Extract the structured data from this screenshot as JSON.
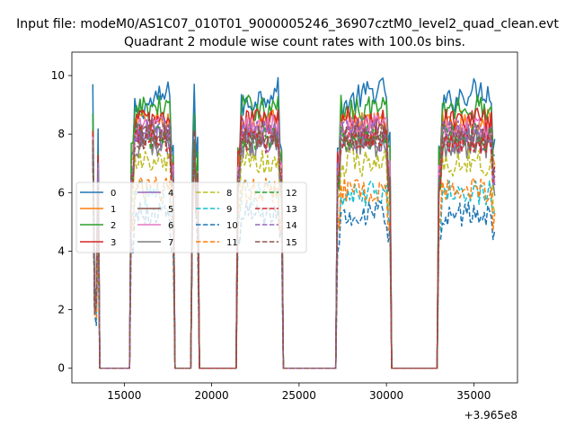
{
  "chart_data": {
    "type": "line",
    "suptitle": "Input file: modeM0/AS1C07_010T01_9000005246_36907cztM0_level2_quad_clean.evt",
    "title": "Quadrant 2 module wise count rates with 100.0s bins.",
    "xlabel": "",
    "ylabel": "",
    "x_offset_label": "+3.965e8",
    "xlim": [
      12000,
      37500
    ],
    "ylim": [
      -0.5,
      10.8
    ],
    "x_ticks": [
      15000,
      20000,
      25000,
      30000,
      35000
    ],
    "x_tick_labels": [
      "15000",
      "20000",
      "25000",
      "30000",
      "35000"
    ],
    "y_ticks": [
      0,
      2,
      4,
      6,
      8,
      10
    ],
    "y_tick_labels": [
      "0",
      "2",
      "4",
      "6",
      "8",
      "10"
    ],
    "bin_seconds": 100,
    "on_intervals": [
      [
        13200,
        13500
      ],
      [
        15400,
        17800
      ],
      [
        18900,
        19200
      ],
      [
        21500,
        24000
      ],
      [
        27200,
        30200
      ],
      [
        33000,
        36200
      ]
    ],
    "spike_x": [
      13200,
      19000
    ],
    "legend_position": "center-left",
    "legend_columns": 4,
    "series": [
      {
        "name": "0",
        "color": "#1f77b4",
        "dash": "solid",
        "level": 9.2,
        "spike": 9.7
      },
      {
        "name": "1",
        "color": "#ff7f0e",
        "dash": "solid",
        "level": 8.4,
        "spike": 8.2
      },
      {
        "name": "2",
        "color": "#2ca02c",
        "dash": "solid",
        "level": 8.9,
        "spike": 8.7
      },
      {
        "name": "3",
        "color": "#d62728",
        "dash": "solid",
        "level": 8.5,
        "spike": 8.1
      },
      {
        "name": "4",
        "color": "#9467bd",
        "dash": "solid",
        "level": 7.8,
        "spike": 7.9
      },
      {
        "name": "5",
        "color": "#8c564b",
        "dash": "solid",
        "level": 8.0,
        "spike": 7.9
      },
      {
        "name": "6",
        "color": "#e377c2",
        "dash": "solid",
        "level": 8.2,
        "spike": 7.9
      },
      {
        "name": "7",
        "color": "#7f7f7f",
        "dash": "solid",
        "level": 7.6,
        "spike": 7.8
      },
      {
        "name": "8",
        "color": "#bcbd22",
        "dash": "dashed",
        "level": 7.0,
        "spike": 7.8
      },
      {
        "name": "9",
        "color": "#17becf",
        "dash": "dashed",
        "level": 6.0,
        "spike": 7.8
      },
      {
        "name": "10",
        "color": "#1f77b4",
        "dash": "dashed",
        "level": 5.3,
        "spike": 7.8
      },
      {
        "name": "11",
        "color": "#ff7f0e",
        "dash": "dashed",
        "level": 6.1,
        "spike": 7.8
      },
      {
        "name": "12",
        "color": "#2ca02c",
        "dash": "dashed",
        "level": 7.9,
        "spike": 7.8
      },
      {
        "name": "13",
        "color": "#d62728",
        "dash": "dashed",
        "level": 7.8,
        "spike": 7.8
      },
      {
        "name": "14",
        "color": "#9467bd",
        "dash": "dashed",
        "level": 8.1,
        "spike": 7.8
      },
      {
        "name": "15",
        "color": "#8c564b",
        "dash": "dashed",
        "level": 7.9,
        "spike": 7.8
      }
    ]
  }
}
